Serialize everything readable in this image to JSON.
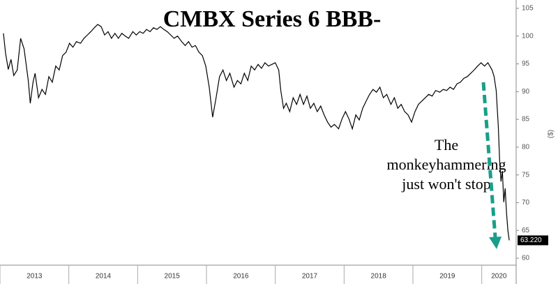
{
  "chart_data": {
    "type": "line",
    "title": "CMBX Series 6 BBB-",
    "y_axis_label": "($)",
    "annotation": [
      "The",
      "monkeyhammering",
      "just won't stop"
    ],
    "last_value": {
      "value": 63.22,
      "label": "63.220"
    },
    "color": "#000000",
    "xlim": [
      2013,
      2020.5
    ],
    "xticks": [
      2013,
      2014,
      2015,
      2016,
      2017,
      2018,
      2019,
      2020
    ],
    "ylim": [
      59,
      106.5
    ],
    "yticks": [
      60,
      65,
      70,
      75,
      80,
      85,
      90,
      95,
      100,
      105
    ],
    "x": [
      2013.05,
      2013.08,
      2013.12,
      2013.16,
      2013.2,
      2013.25,
      2013.3,
      2013.35,
      2013.41,
      2013.44,
      2013.48,
      2013.51,
      2013.56,
      2013.61,
      2013.66,
      2013.71,
      2013.76,
      2013.81,
      2013.86,
      2013.91,
      2013.96,
      2014.01,
      2014.06,
      2014.11,
      2014.17,
      2014.22,
      2014.27,
      2014.32,
      2014.37,
      2014.42,
      2014.47,
      2014.52,
      2014.57,
      2014.62,
      2014.67,
      2014.72,
      2014.77,
      2014.82,
      2014.87,
      2014.93,
      2014.98,
      2015.03,
      2015.08,
      2015.13,
      2015.18,
      2015.23,
      2015.28,
      2015.33,
      2015.38,
      2015.43,
      2015.48,
      2015.53,
      2015.58,
      2015.64,
      2015.69,
      2015.74,
      2015.79,
      2015.84,
      2015.89,
      2015.94,
      2015.99,
      2016.04,
      2016.09,
      2016.14,
      2016.19,
      2016.24,
      2016.29,
      2016.34,
      2016.4,
      2016.45,
      2016.5,
      2016.55,
      2016.6,
      2016.65,
      2016.7,
      2016.75,
      2016.8,
      2016.85,
      2016.9,
      2016.95,
      2017.0,
      2017.05,
      2017.08,
      2017.12,
      2017.16,
      2017.21,
      2017.26,
      2017.31,
      2017.36,
      2017.41,
      2017.46,
      2017.51,
      2017.56,
      2017.61,
      2017.66,
      2017.71,
      2017.76,
      2017.81,
      2017.86,
      2017.92,
      2017.97,
      2018.02,
      2018.07,
      2018.12,
      2018.17,
      2018.22,
      2018.27,
      2018.32,
      2018.37,
      2018.42,
      2018.47,
      2018.52,
      2018.57,
      2018.62,
      2018.68,
      2018.73,
      2018.78,
      2018.83,
      2018.88,
      2018.93,
      2018.98,
      2019.03,
      2019.08,
      2019.13,
      2019.18,
      2019.23,
      2019.28,
      2019.33,
      2019.39,
      2019.44,
      2019.49,
      2019.54,
      2019.59,
      2019.64,
      2019.69,
      2019.74,
      2019.79,
      2019.84,
      2019.89,
      2019.94,
      2019.99,
      2020.04,
      2020.09,
      2020.15,
      2020.18,
      2020.21,
      2020.24,
      2020.26,
      2020.28,
      2020.3,
      2020.32,
      2020.34,
      2020.36,
      2020.38,
      2020.4
    ],
    "values": [
      100.5,
      97,
      94,
      95.8,
      92.9,
      93.9,
      99.6,
      97.7,
      92.1,
      87.9,
      91.7,
      93.3,
      88.9,
      90.4,
      89.5,
      92.7,
      91.7,
      94.6,
      93.9,
      96.5,
      97.1,
      98.7,
      98,
      99,
      98.7,
      99.6,
      100.2,
      100.8,
      101.5,
      102.1,
      101.7,
      100.2,
      100.8,
      99.6,
      100.5,
      99.6,
      100.5,
      100,
      99.6,
      100.8,
      100.2,
      100.8,
      100.5,
      101.2,
      100.8,
      101.5,
      101.2,
      101.7,
      101.2,
      100.8,
      100.2,
      99.6,
      100,
      99,
      98.3,
      99,
      98,
      98.3,
      97.1,
      96.5,
      94.6,
      90.8,
      85.4,
      88.9,
      92.7,
      93.9,
      92,
      93.3,
      90.8,
      92,
      91.4,
      93.3,
      92,
      94.6,
      93.9,
      94.9,
      94.2,
      95.2,
      94.6,
      94.9,
      95.2,
      93.9,
      90.2,
      87,
      87.9,
      86.4,
      88.9,
      87.7,
      89.5,
      87.7,
      89.2,
      87,
      87.9,
      86.4,
      87.4,
      85.8,
      84.5,
      83.6,
      84.1,
      83.3,
      85.1,
      86.4,
      85.1,
      83.3,
      85.8,
      84.9,
      87,
      88.3,
      89.5,
      90.4,
      89.9,
      90.8,
      88.9,
      89.5,
      87.7,
      88.9,
      87,
      87.7,
      86.4,
      85.8,
      84.5,
      86.4,
      87.7,
      88.3,
      88.9,
      89.5,
      89.2,
      90.2,
      89.9,
      90.4,
      90.2,
      90.8,
      90.4,
      91.4,
      91.7,
      92.4,
      92.7,
      93.3,
      93.9,
      94.6,
      95.2,
      94.6,
      95.2,
      93.9,
      92.7,
      90.2,
      83.9,
      77.6,
      73.8,
      75.7,
      70.1,
      72.6,
      68.2,
      65,
      63.22
    ]
  }
}
